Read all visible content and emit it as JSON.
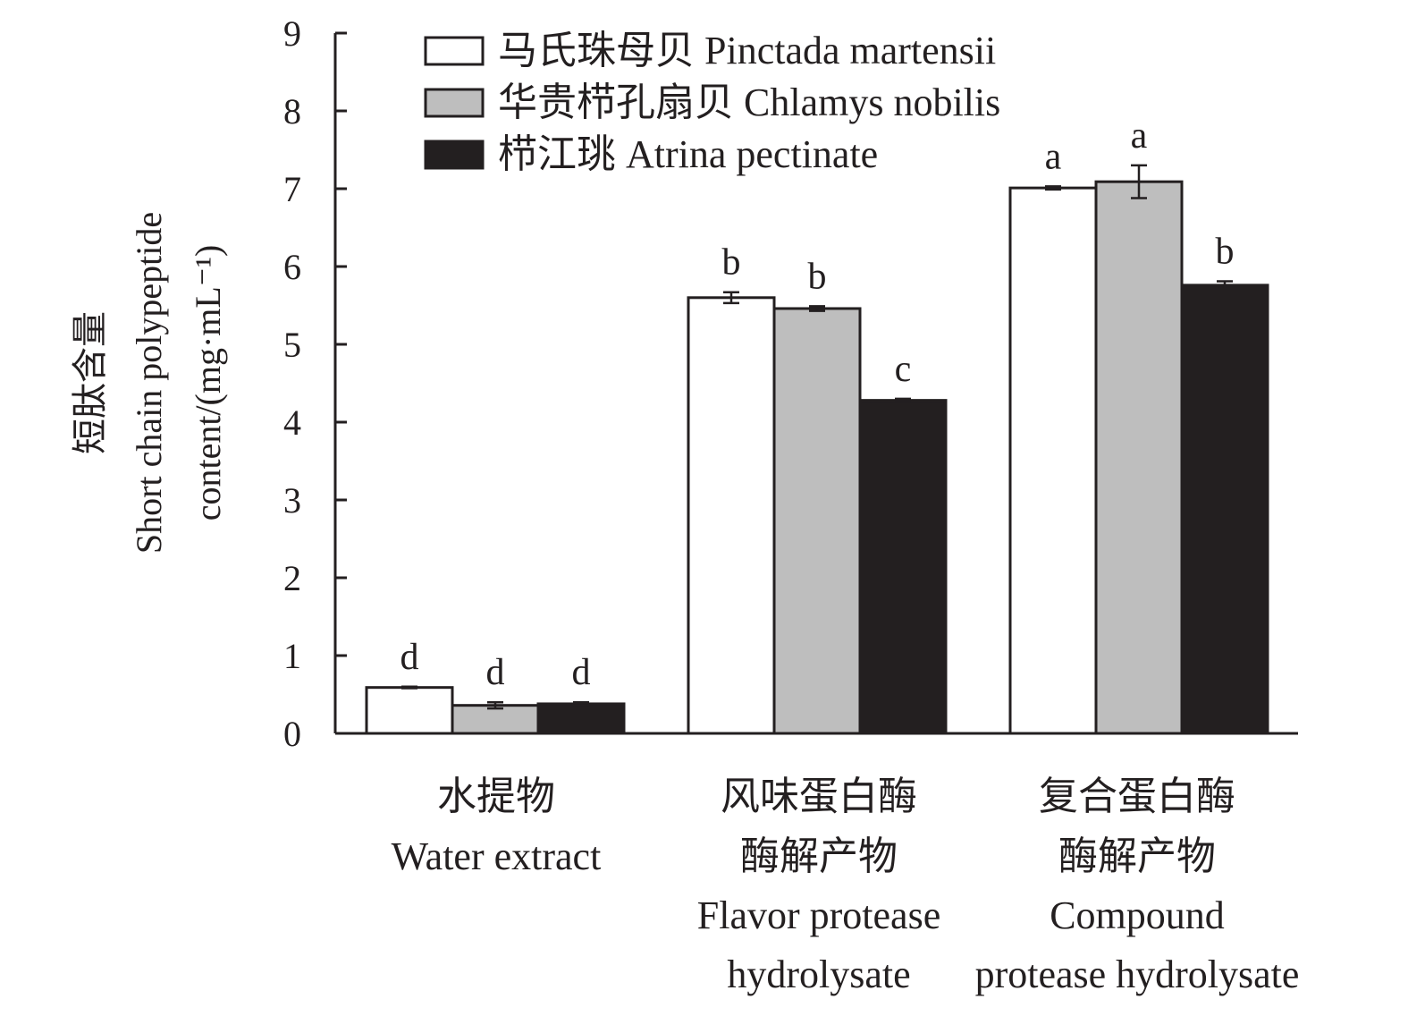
{
  "chart_data": {
    "type": "bar",
    "ylabel_lines": [
      "短肽含量",
      "Short chain polypeptide",
      "content/(mg·mL⁻¹)"
    ],
    "ylim": [
      0,
      9
    ],
    "yticks": [
      0,
      1,
      2,
      3,
      4,
      5,
      6,
      7,
      8,
      9
    ],
    "grid": false,
    "legend_position": "top",
    "categories": [
      {
        "name": "水提物 Water extract",
        "lines": [
          "水提物",
          "Water extract"
        ]
      },
      {
        "name": "风味蛋白酶酶解产物 Flavor protease hydrolysate",
        "lines": [
          "风味蛋白酶",
          "酶解产物",
          "Flavor protease",
          "hydrolysate"
        ]
      },
      {
        "name": "复合蛋白酶酶解产物 Compound protease hydrolysate",
        "lines": [
          "复合蛋白酶",
          "酶解产物",
          "Compound",
          "protease hydrolysate"
        ]
      }
    ],
    "series": [
      {
        "name": "马氏珠母贝 Pinctada martensii",
        "color": "#ffffff",
        "values": [
          0.59,
          5.6,
          7.01
        ],
        "errors": [
          0.01,
          0.07,
          0.02
        ],
        "letters": [
          "d",
          "b",
          "a"
        ]
      },
      {
        "name": "华贵栉孔扇贝 Chlamys nobilis",
        "color": "#bebebe",
        "values": [
          0.36,
          5.46,
          7.09
        ],
        "errors": [
          0.04,
          0.03,
          0.21
        ],
        "letters": [
          "d",
          "b",
          "a"
        ]
      },
      {
        "name": "栉江珧 Atrina pectinate",
        "color": "#231f20",
        "values": [
          0.38,
          4.28,
          5.76
        ],
        "errors": [
          0.02,
          0.02,
          0.05
        ],
        "letters": [
          "d",
          "c",
          "b"
        ]
      }
    ]
  }
}
